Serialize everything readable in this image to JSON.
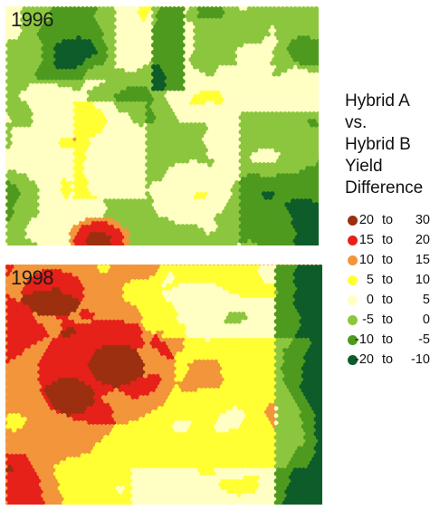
{
  "maps": [
    {
      "year": "1996",
      "scene": [
        3,
        5,
        2
      ],
      "seed": 7
    },
    {
      "year": "1998",
      "scene": [
        0,
        2,
        3,
        1
      ],
      "seed": 11
    }
  ],
  "legend": {
    "title": [
      "Hybrid A",
      "vs.",
      "Hybrid B",
      "Yield",
      "Difference"
    ],
    "items": [
      {
        "low": "20",
        "to": "to",
        "high": "30",
        "color": "#9b2f0f"
      },
      {
        "low": "15",
        "to": "to",
        "high": "20",
        "color": "#e5211a"
      },
      {
        "low": "10",
        "to": "to",
        "high": "15",
        "color": "#f2953b"
      },
      {
        "low": "5",
        "to": "to",
        "high": "10",
        "color": "#ffff33"
      },
      {
        "low": "0",
        "to": "to",
        "high": "5",
        "color": "#ffffc4"
      },
      {
        "low": "-5",
        "to": "to",
        "high": "0",
        "color": "#8cc63f"
      },
      {
        "low": "-10",
        "to": "to",
        "high": "-5",
        "color": "#4e9a1f"
      },
      {
        "low": "-20",
        "to": "to",
        "high": "-10",
        "color": "#0d5c2a"
      }
    ]
  }
}
